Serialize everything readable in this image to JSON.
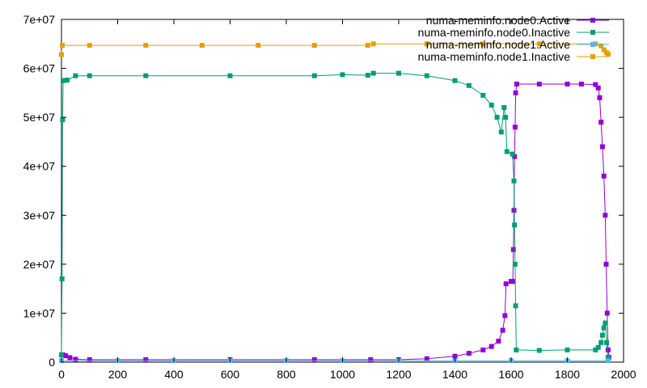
{
  "chart_data": {
    "type": "line",
    "title": "",
    "xlabel": "",
    "ylabel": "",
    "xlim": [
      0,
      2000
    ],
    "ylim": [
      0,
      70000000
    ],
    "x_ticks": [
      0,
      200,
      400,
      600,
      800,
      1000,
      1200,
      1400,
      1600,
      1800,
      2000
    ],
    "x_tick_labels": [
      "0",
      "200",
      "400",
      "600",
      "800",
      "1000",
      "1200",
      "1400",
      "1600",
      "1800",
      "2000"
    ],
    "y_ticks": [
      0,
      10000000,
      20000000,
      30000000,
      40000000,
      50000000,
      60000000,
      70000000
    ],
    "y_tick_labels": [
      "0",
      "1e+07",
      "2e+07",
      "3e+07",
      "4e+07",
      "5e+07",
      "6e+07",
      "7e+07"
    ],
    "grid": false,
    "legend_position": "top-right",
    "series": [
      {
        "name": "numa-meminfo.node0.Active",
        "color": "#9400d3",
        "marker": "square",
        "points": [
          [
            0,
            1500000
          ],
          [
            5,
            1500000
          ],
          [
            15,
            1300000
          ],
          [
            30,
            900000
          ],
          [
            50,
            600000
          ],
          [
            100,
            500000
          ],
          [
            300,
            500000
          ],
          [
            600,
            500000
          ],
          [
            900,
            500000
          ],
          [
            1100,
            500000
          ],
          [
            1200,
            500000
          ],
          [
            1300,
            700000
          ],
          [
            1400,
            1200000
          ],
          [
            1450,
            1800000
          ],
          [
            1500,
            2500000
          ],
          [
            1530,
            3200000
          ],
          [
            1555,
            4300000
          ],
          [
            1570,
            6500000
          ],
          [
            1578,
            9500000
          ],
          [
            1582,
            16000000
          ],
          [
            1600,
            16500000
          ],
          [
            1606,
            16500000
          ],
          [
            1608,
            23000000
          ],
          [
            1610,
            31000000
          ],
          [
            1612,
            42000000
          ],
          [
            1614,
            48000000
          ],
          [
            1616,
            55000000
          ],
          [
            1620,
            56800000
          ],
          [
            1700,
            56800000
          ],
          [
            1800,
            56800000
          ],
          [
            1850,
            56800000
          ],
          [
            1900,
            56700000
          ],
          [
            1910,
            56000000
          ],
          [
            1915,
            54000000
          ],
          [
            1920,
            49000000
          ],
          [
            1925,
            44000000
          ],
          [
            1930,
            38000000
          ],
          [
            1935,
            30000000
          ],
          [
            1938,
            20000000
          ],
          [
            1942,
            10000000
          ],
          [
            1945,
            2500000
          ],
          [
            1948,
            1000000
          ]
        ]
      },
      {
        "name": "numa-meminfo.node0.Inactive",
        "color": "#009e73",
        "marker": "square",
        "points": [
          [
            0,
            1500000
          ],
          [
            2,
            17000000
          ],
          [
            4,
            49500000
          ],
          [
            6,
            57500000
          ],
          [
            20,
            57600000
          ],
          [
            50,
            58500000
          ],
          [
            100,
            58500000
          ],
          [
            300,
            58500000
          ],
          [
            600,
            58500000
          ],
          [
            900,
            58500000
          ],
          [
            1000,
            58700000
          ],
          [
            1090,
            58600000
          ],
          [
            1110,
            59000000
          ],
          [
            1200,
            59000000
          ],
          [
            1300,
            58500000
          ],
          [
            1400,
            57500000
          ],
          [
            1450,
            56500000
          ],
          [
            1500,
            54500000
          ],
          [
            1530,
            52500000
          ],
          [
            1550,
            50000000
          ],
          [
            1565,
            47000000
          ],
          [
            1575,
            52000000
          ],
          [
            1580,
            50000000
          ],
          [
            1585,
            43000000
          ],
          [
            1605,
            42500000
          ],
          [
            1610,
            37000000
          ],
          [
            1612,
            28000000
          ],
          [
            1614,
            20000000
          ],
          [
            1616,
            11500000
          ],
          [
            1618,
            2500000
          ],
          [
            1700,
            2400000
          ],
          [
            1800,
            2500000
          ],
          [
            1900,
            2500000
          ],
          [
            1910,
            3000000
          ],
          [
            1920,
            4000000
          ],
          [
            1925,
            5500000
          ],
          [
            1930,
            7000000
          ],
          [
            1935,
            8000000
          ],
          [
            1940,
            4000000
          ],
          [
            1945,
            1000000
          ]
        ]
      },
      {
        "name": "numa-meminfo.node1.Active",
        "color": "#56b4e9",
        "marker": "square",
        "points": [
          [
            0,
            300000
          ],
          [
            200,
            300000
          ],
          [
            400,
            300000
          ],
          [
            600,
            300000
          ],
          [
            800,
            300000
          ],
          [
            1000,
            300000
          ],
          [
            1200,
            300000
          ],
          [
            1400,
            300000
          ],
          [
            1600,
            300000
          ],
          [
            1800,
            300000
          ],
          [
            1945,
            300000
          ]
        ]
      },
      {
        "name": "numa-meminfo.node1.Inactive",
        "color": "#e69f00",
        "marker": "square",
        "points": [
          [
            0,
            62800000
          ],
          [
            3,
            64700000
          ],
          [
            100,
            64700000
          ],
          [
            300,
            64700000
          ],
          [
            500,
            64700000
          ],
          [
            700,
            64700000
          ],
          [
            900,
            64700000
          ],
          [
            1090,
            64700000
          ],
          [
            1110,
            65000000
          ],
          [
            1300,
            65000000
          ],
          [
            1500,
            65000000
          ],
          [
            1700,
            65000000
          ],
          [
            1900,
            65000000
          ],
          [
            1920,
            64600000
          ],
          [
            1930,
            63800000
          ],
          [
            1940,
            63200000
          ],
          [
            1945,
            62900000
          ]
        ]
      }
    ]
  }
}
